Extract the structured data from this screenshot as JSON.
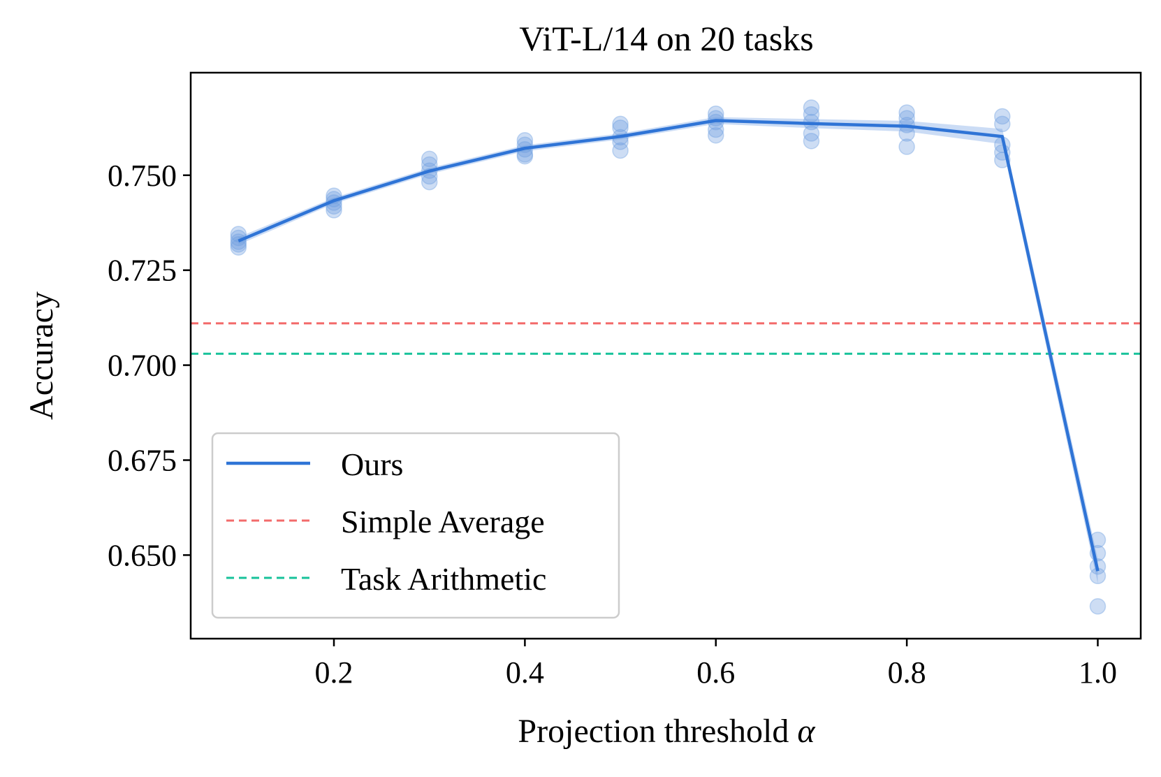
{
  "chart_data": {
    "type": "line",
    "title": "ViT-L/14 on 20 tasks",
    "xlabel": "Projection threshold",
    "xlabel_symbol": "α",
    "ylabel": "Accuracy",
    "xlim": [
      0.05,
      1.045
    ],
    "ylim": [
      0.628,
      0.777
    ],
    "x_ticks": [
      0.2,
      0.4,
      0.6,
      0.8,
      1.0
    ],
    "x_tick_labels": [
      "0.2",
      "0.4",
      "0.6",
      "0.8",
      "1.0"
    ],
    "y_ticks": [
      0.65,
      0.675,
      0.7,
      0.725,
      0.75
    ],
    "y_tick_labels": [
      "0.650",
      "0.675",
      "0.700",
      "0.725",
      "0.750"
    ],
    "grid": false,
    "legend_position": "lower-left",
    "series": [
      {
        "name": "Ours",
        "style": "solid",
        "color": "#2f74d6",
        "x": [
          0.1,
          0.2,
          0.3,
          0.4,
          0.5,
          0.6,
          0.7,
          0.8,
          0.9,
          1.0
        ],
        "values": [
          0.7327,
          0.7433,
          0.7511,
          0.7571,
          0.7602,
          0.7644,
          0.7636,
          0.7629,
          0.7602,
          0.6458
        ],
        "band_lower": [
          0.7317,
          0.7425,
          0.7503,
          0.7563,
          0.7594,
          0.7635,
          0.7624,
          0.7615,
          0.7582,
          0.6425
        ],
        "band_upper": [
          0.7337,
          0.7441,
          0.7519,
          0.7579,
          0.761,
          0.7653,
          0.7648,
          0.7643,
          0.7622,
          0.6491
        ],
        "points": [
          [
            0.1,
            0.7345
          ],
          [
            0.1,
            0.7335
          ],
          [
            0.1,
            0.7325
          ],
          [
            0.1,
            0.7318
          ],
          [
            0.1,
            0.731
          ],
          [
            0.2,
            0.7446
          ],
          [
            0.2,
            0.7437
          ],
          [
            0.2,
            0.7428
          ],
          [
            0.2,
            0.7418
          ],
          [
            0.2,
            0.7408
          ],
          [
            0.3,
            0.7543
          ],
          [
            0.3,
            0.7528
          ],
          [
            0.3,
            0.7512
          ],
          [
            0.3,
            0.7497
          ],
          [
            0.3,
            0.7482
          ],
          [
            0.4,
            0.7592
          ],
          [
            0.4,
            0.758
          ],
          [
            0.4,
            0.7568
          ],
          [
            0.4,
            0.7555
          ],
          [
            0.4,
            0.755
          ],
          [
            0.5,
            0.7635
          ],
          [
            0.5,
            0.7625
          ],
          [
            0.5,
            0.76
          ],
          [
            0.5,
            0.7588
          ],
          [
            0.5,
            0.7565
          ],
          [
            0.6,
            0.7662
          ],
          [
            0.6,
            0.765
          ],
          [
            0.6,
            0.764
          ],
          [
            0.6,
            0.762
          ],
          [
            0.6,
            0.7605
          ],
          [
            0.7,
            0.7678
          ],
          [
            0.7,
            0.766
          ],
          [
            0.7,
            0.764
          ],
          [
            0.7,
            0.761
          ],
          [
            0.7,
            0.759
          ],
          [
            0.8,
            0.7665
          ],
          [
            0.8,
            0.765
          ],
          [
            0.8,
            0.7632
          ],
          [
            0.8,
            0.761
          ],
          [
            0.8,
            0.7575
          ],
          [
            0.9,
            0.7655
          ],
          [
            0.9,
            0.7635
          ],
          [
            0.9,
            0.758
          ],
          [
            0.9,
            0.756
          ],
          [
            0.9,
            0.754
          ],
          [
            1.0,
            0.654
          ],
          [
            1.0,
            0.6505
          ],
          [
            1.0,
            0.647
          ],
          [
            1.0,
            0.6445
          ],
          [
            1.0,
            0.6365
          ]
        ]
      },
      {
        "name": "Simple Average",
        "style": "dashed",
        "color": "#f36b6b",
        "hline": 0.711
      },
      {
        "name": "Task Arithmetic",
        "style": "dashed",
        "color": "#17c29a",
        "hline": 0.703
      }
    ]
  }
}
